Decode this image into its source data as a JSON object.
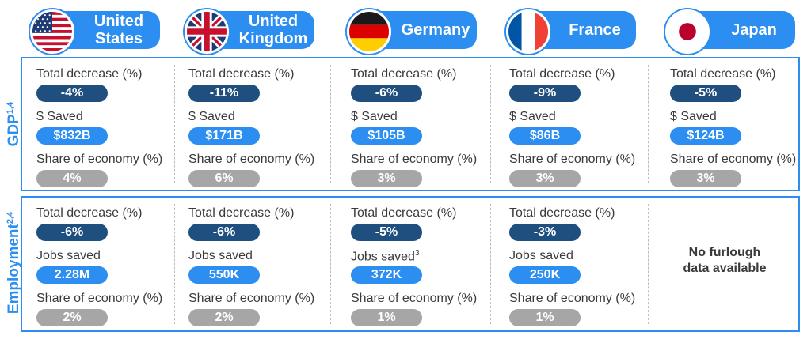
{
  "countries": [
    {
      "name_line1": "United",
      "name_line2": "States",
      "flag": "us-flag-icon",
      "gdp": {
        "decrease_label": "Total decrease (%)",
        "decrease": "-4%",
        "saved_label": "$ Saved",
        "saved": "$832B",
        "share_label": "Share of economy (%)",
        "share": "4%"
      },
      "employment": {
        "decrease_label": "Total decrease (%)",
        "decrease": "-6%",
        "saved_label": "Jobs saved",
        "saved": "2.28M",
        "share_label": "Share of economy (%)",
        "share": "2%"
      }
    },
    {
      "name_line1": "United",
      "name_line2": "Kingdom",
      "flag": "uk-flag-icon",
      "gdp": {
        "decrease_label": "Total decrease (%)",
        "decrease": "-11%",
        "saved_label": "$ Saved",
        "saved": "$171B",
        "share_label": "Share of economy (%)",
        "share": "6%"
      },
      "employment": {
        "decrease_label": "Total decrease (%)",
        "decrease": "-6%",
        "saved_label": "Jobs saved",
        "saved": "550K",
        "share_label": "Share of economy (%)",
        "share": "2%"
      }
    },
    {
      "name_line1": "Germany",
      "name_line2": "",
      "flag": "germany-flag-icon",
      "gdp": {
        "decrease_label": "Total decrease (%)",
        "decrease": "-6%",
        "saved_label": "$ Saved",
        "saved": "$105B",
        "share_label": "Share of economy (%)",
        "share": "3%"
      },
      "employment": {
        "decrease_label": "Total decrease (%)",
        "decrease": "-5%",
        "saved_label": "Jobs saved",
        "saved_sup": "3",
        "saved": "372K",
        "share_label": "Share of economy (%)",
        "share": "1%"
      }
    },
    {
      "name_line1": "France",
      "name_line2": "",
      "flag": "france-flag-icon",
      "gdp": {
        "decrease_label": "Total decrease (%)",
        "decrease": "-9%",
        "saved_label": "$ Saved",
        "saved": "$86B",
        "share_label": "Share of economy (%)",
        "share": "3%"
      },
      "employment": {
        "decrease_label": "Total decrease (%)",
        "decrease": "-3%",
        "saved_label": "Jobs saved",
        "saved": "250K",
        "share_label": "Share of economy (%)",
        "share": "1%"
      }
    },
    {
      "name_line1": "Japan",
      "name_line2": "",
      "flag": "japan-flag-icon",
      "gdp": {
        "decrease_label": "Total decrease (%)",
        "decrease": "-5%",
        "saved_label": "$ Saved",
        "saved": "$124B",
        "share_label": "Share of economy (%)",
        "share": "3%"
      },
      "employment": {
        "no_data_line1": "No furlough",
        "no_data_line2": "data available"
      }
    }
  ],
  "sections": {
    "gdp_label": "GDP",
    "gdp_sup": "1,4",
    "employment_label": "Employment",
    "employment_sup": "2,4"
  },
  "colors": {
    "accent": "#2b8ef0",
    "dark_badge": "#1f4f7f",
    "gray_badge": "#a6a6a6"
  }
}
